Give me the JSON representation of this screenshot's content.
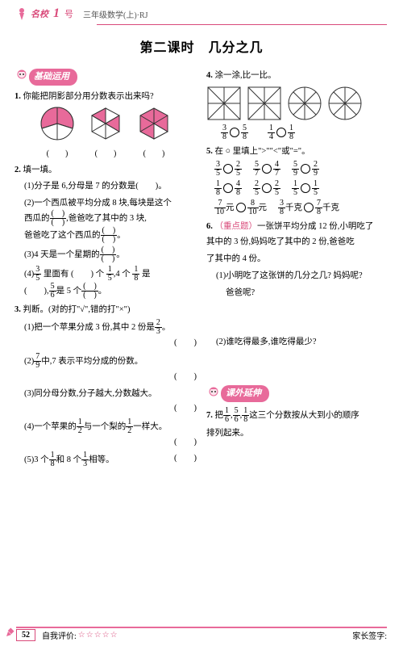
{
  "header": {
    "logo_text": "名校",
    "logo_num": "1",
    "logo_sub": "号",
    "subtitle": "三年级数学(上)·RJ"
  },
  "title": "第二课时　几分之几",
  "badges": {
    "basic": "基础运用",
    "ext": "课外延伸"
  },
  "colors": {
    "accent": "#d94a7a",
    "badge": "#e86a9a",
    "pink_fill": "#e86a9a",
    "outline": "#333"
  },
  "q1": {
    "num": "1.",
    "text": "你能把阴影部分用分数表示出来吗?",
    "label": "(　　)"
  },
  "q2": {
    "num": "2.",
    "text": "填一填。",
    "s1": "(1)分子是 6,分母是 7 的分数是(　　)。",
    "s2a": "(2)一个西瓜被平均分成 8 块,每块是这个",
    "s2b": "西瓜的",
    "s2c": ",爸爸吃了其中的 3 块,",
    "s2d": "爸爸吃了这个西瓜的",
    "s2e": "。",
    "s3": "(3)4 天是一个星期的",
    "s3b": "。",
    "s4a": "(4)",
    "s4f1n": "3",
    "s4f1d": "5",
    "s4b": " 里面有 (　　) 个 ",
    "s4f2n": "1",
    "s4f2d": "5",
    "s4c": ",4 个 ",
    "s4f3n": "1",
    "s4f3d": "8",
    "s4d": " 是",
    "s4e": "(　　),",
    "s4f4n": "5",
    "s4f4d": "6",
    "s4f": "是 5 个",
    "s4fend": "。"
  },
  "q3": {
    "num": "3.",
    "text": "判断。(对的打\"√\",错的打\"×\")",
    "s1a": "(1)把一个苹果分成 3 份,其中 2 份是",
    "s1f_n": "2",
    "s1f_d": "3",
    "s1b": "。",
    "tail": "(　　)",
    "s2a": "(2)",
    "s2f_n": "7",
    "s2f_d": "9",
    "s2b": "中,7 表示平均分成的份数。",
    "s3": "(3)同分母分数,分子越大,分数越大。",
    "s4a": "(4)一个苹果的",
    "s4f1n": "1",
    "s4f1d": "2",
    "s4b": "与一个梨的",
    "s4f2n": "1",
    "s4f2d": "2",
    "s4c": "一样大。",
    "s5a": "(5)3 个",
    "s5f1n": "1",
    "s5f1d": "8",
    "s5b": "和 8 个",
    "s5f2n": "1",
    "s5f2d": "3",
    "s5c": "相等。"
  },
  "q4": {
    "num": "4.",
    "text": "涂一涂,比一比。",
    "p1n": "3",
    "p1d": "8",
    "p2n": "5",
    "p2d": "8",
    "p3n": "1",
    "p3d": "4",
    "p4n": "1",
    "p4d": "8"
  },
  "q5": {
    "num": "5.",
    "text": "在 ○ 里填上\">\"\"<\"或\"=\"。",
    "rows": [
      [
        {
          "n": "3",
          "d": "5"
        },
        {
          "n": "2",
          "d": "5"
        },
        {
          "n": "5",
          "d": "7"
        },
        {
          "n": "4",
          "d": "7"
        },
        {
          "n": "5",
          "d": "9"
        },
        {
          "n": "2",
          "d": "9"
        }
      ],
      [
        {
          "n": "1",
          "d": "8"
        },
        {
          "n": "4",
          "d": "8"
        },
        {
          "n": "2",
          "d": "5"
        },
        {
          "n": "2",
          "d": "5"
        },
        {
          "n": "1",
          "d": "5"
        },
        {
          "n": "1",
          "d": "5"
        }
      ]
    ],
    "row3": {
      "a": {
        "n": "7",
        "d": "10"
      },
      "unit1": "元",
      "b": {
        "n": "8",
        "d": "10"
      },
      "unit2": "元",
      "c": {
        "n": "3",
        "d": "8"
      },
      "unit3": "千克",
      "d": {
        "n": "7",
        "d": "8"
      },
      "unit4": "千克"
    }
  },
  "q6": {
    "num": "6.",
    "hot": "（重点题）",
    "text": "一张饼平均分成 12 份,小明吃了",
    "l2": "其中的 3 份,妈妈吃了其中的 2 份,爸爸吃",
    "l3": "了其中的 4 份。",
    "s1": "(1)小明吃了这张饼的几分之几? 妈妈呢?",
    "s1b": "爸爸呢?",
    "s2": "(2)谁吃得最多,谁吃得最少?"
  },
  "q7": {
    "num": "7.",
    "t1": "把",
    "f1": {
      "n": "1",
      "d": "6"
    },
    "c1": ",",
    "f2": {
      "n": "5",
      "d": "6"
    },
    "c2": ",",
    "f3": {
      "n": "1",
      "d": "8"
    },
    "t2": "这三个分数按从大到小的顺序",
    "t3": "排列起来。"
  },
  "footer": {
    "page": "52",
    "self": "自我评价:",
    "stars": "☆☆☆☆☆",
    "parent": "家长签字:"
  }
}
